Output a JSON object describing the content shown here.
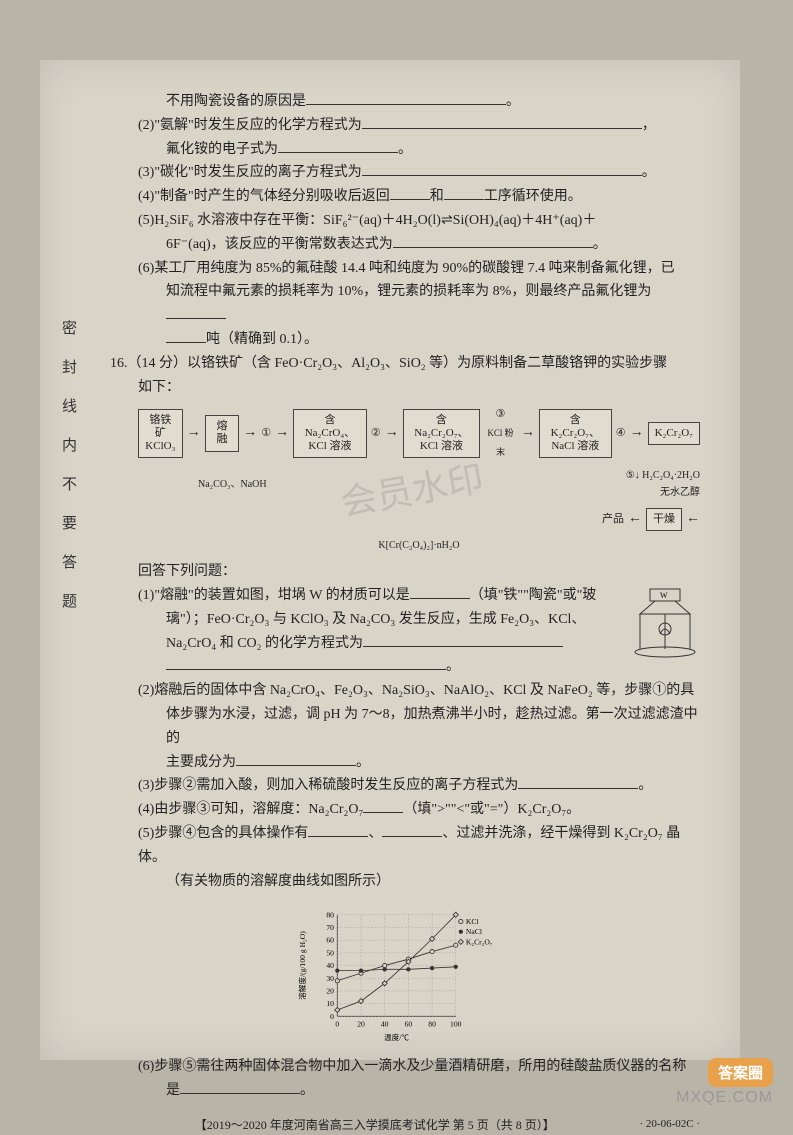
{
  "sidebar_text": "密封线内不要答题",
  "lines": {
    "l1a": "不用陶瓷设备的原因是",
    "l1b": "。",
    "l2a": "(2)\"氨解\"时发生反应的化学方程式为",
    "l2b": "，",
    "l3a": "氟化铵的电子式为",
    "l3b": "。",
    "l4a": "(3)\"碳化\"时发生反应的离子方程式为",
    "l4b": "。",
    "l5a": "(4)\"制备\"时产生的气体经分别吸收后返回",
    "l5b": "和",
    "l5c": "工序循环使用。",
    "l6a": "(5)H₂SiF₆ 水溶液中存在平衡：SiF₆²⁻(aq)＋4H₂O(l)⇌Si(OH)₄(aq)＋4H⁺(aq)＋",
    "l6b": "6F⁻(aq)，该反应的平衡常数表达式为",
    "l6c": "。",
    "l7a": "(6)某工厂用纯度为 85%的氟硅酸 14.4 吨和纯度为 90%的碳酸锂 7.4 吨来制备氟化锂，已",
    "l7b": "知流程中氟元素的损耗率为 10%，锂元素的损耗率为 8%，则最终产品氟化锂为",
    "l7c": "吨（精确到 0.1）。",
    "q16": "16.（14 分）以铬铁矿（含 FeO·Cr₂O₃、Al₂O₃、SiO₂ 等）为原料制备二草酸铬钾的实验步骤",
    "q16b": "如下：",
    "ans_head": "回答下列问题：",
    "a1a": "(1)\"熔融\"的装置如图，坩埚 W 的材质可以是",
    "a1b": "（填\"铁\"\"陶瓷\"或\"玻",
    "a1c": "璃\"）；FeO·Cr₂O₃ 与 KClO₃ 及 Na₂CO₃ 发生反应，生成 Fe₂O₃、KCl、",
    "a1d": "Na₂CrO₄ 和 CO₂ 的化学方程式为",
    "a1e": "。",
    "a2a": "(2)熔融后的固体中含 Na₂CrO₄、Fe₂O₃、Na₂SiO₃、NaAlO₂、KCl 及 NaFeO₂ 等，步骤①的具",
    "a2b": "体步骤为水浸，过滤，调 pH 为 7～8，加热煮沸半小时，趁热过滤。第一次过滤滤渣中的",
    "a2c": "主要成分为",
    "a2d": "。",
    "a3a": "(3)步骤②需加入酸，则加入稀硫酸时发生反应的离子方程式为",
    "a3b": "。",
    "a4a": "(4)由步骤③可知，溶解度：Na₂Cr₂O₇",
    "a4b": "（填\">\"\"<\"或\"=\"）K₂Cr₂O₇。",
    "a5a": "(5)步骤④包含的具体操作有",
    "a5b": "、",
    "a5c": "、过滤并洗涤，经干燥得到 K₂Cr₂O₇ 晶体。",
    "a5d": "（有关物质的溶解度曲线如图所示）",
    "a6a": "(6)步骤⑤需往两种固体混合物中加入一滴水及少量酒精研磨，所用的硅酸盐质仪器的名称",
    "a6b": "是",
    "a6c": "。"
  },
  "flow": {
    "n1a": "铬铁矿",
    "n1b": "KClO₃",
    "n2": "熔融",
    "n2_below": "Na₂CO₃、NaOH",
    "s1": "①",
    "n3a": "含 Na₂CrO₄、",
    "n3b": "KCl 溶液",
    "s2": "②",
    "n4a": "含 Na₂Cr₂O₇、",
    "n4b": "KCl 溶液",
    "s3": "③",
    "s3_label": "KCl 粉末",
    "n5a": "含 K₂Cr₂O₇、",
    "n5b": "NaCl 溶液",
    "s4": "④",
    "n6": "K₂Cr₂O₇",
    "s5": "⑤",
    "s5_labela": "H₂C₂O₄·2H₂O",
    "s5_labelb": "无水乙醇",
    "n7": "干燥",
    "n8": "产品",
    "n8b": "K[Cr(C₂O₄)₂]·nH₂O"
  },
  "chart": {
    "ylabel": "溶解度/(g/100 g H₂O)",
    "xlabel": "温度/℃",
    "yticks": [
      0,
      10,
      20,
      30,
      40,
      50,
      60,
      70,
      80
    ],
    "xticks": [
      0,
      20,
      40,
      60,
      80,
      100
    ],
    "ylim": [
      0,
      80
    ],
    "xlim": [
      0,
      100
    ],
    "series": [
      {
        "name": "KCl",
        "marker": "open-circle",
        "color": "#333",
        "points": [
          [
            0,
            28
          ],
          [
            20,
            34
          ],
          [
            40,
            40
          ],
          [
            60,
            45
          ],
          [
            80,
            51
          ],
          [
            100,
            56
          ]
        ]
      },
      {
        "name": "NaCl",
        "marker": "filled-circle",
        "color": "#333",
        "points": [
          [
            0,
            36
          ],
          [
            20,
            36
          ],
          [
            40,
            37
          ],
          [
            60,
            37
          ],
          [
            80,
            38
          ],
          [
            100,
            39
          ]
        ]
      },
      {
        "name": "K₂Cr₂O₇",
        "marker": "diamond",
        "color": "#333",
        "points": [
          [
            0,
            5
          ],
          [
            20,
            12
          ],
          [
            40,
            26
          ],
          [
            60,
            43
          ],
          [
            80,
            61
          ],
          [
            100,
            80
          ]
        ]
      }
    ],
    "grid_color": "#999",
    "font_size": 9
  },
  "footer": {
    "text": "【2019～2020 年度河南省高三入学摸底考试化学 第 5 页（共 8 页）】",
    "code": "· 20-06-02C ·"
  },
  "watermark": "会员水印",
  "logo": {
    "badge": "答案圈",
    "url": "MXQE.COM"
  }
}
